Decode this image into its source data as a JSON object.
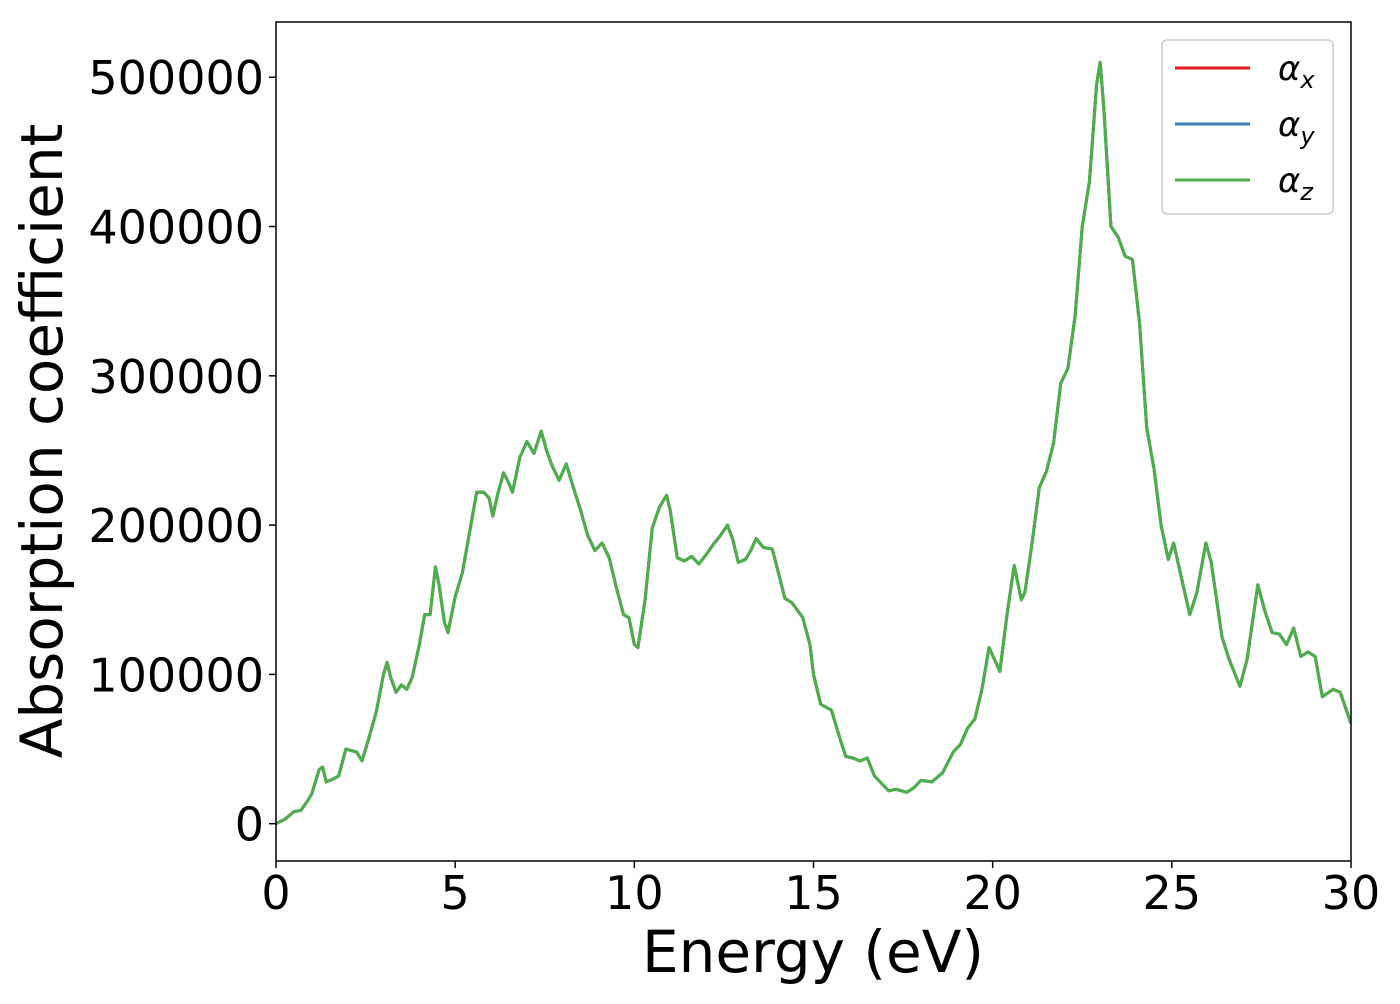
{
  "chart_data": {
    "type": "line",
    "xlabel": "Energy (eV)",
    "ylabel": "Absorption coefficient",
    "x": [
      0,
      0.25,
      0.5,
      0.7,
      0.9,
      1.0,
      1.2,
      1.3,
      1.4,
      1.6,
      1.75,
      1.95,
      2.1,
      2.25,
      2.4,
      2.6,
      2.8,
      3.0,
      3.1,
      3.2,
      3.35,
      3.5,
      3.65,
      3.8,
      4.0,
      4.15,
      4.3,
      4.45,
      4.55,
      4.7,
      4.8,
      5.0,
      5.2,
      5.4,
      5.6,
      5.8,
      5.95,
      6.05,
      6.2,
      6.35,
      6.5,
      6.6,
      6.8,
      7.0,
      7.2,
      7.4,
      7.55,
      7.7,
      7.9,
      8.1,
      8.3,
      8.5,
      8.7,
      8.9,
      9.1,
      9.3,
      9.5,
      9.7,
      9.85,
      10.0,
      10.1,
      10.3,
      10.5,
      10.7,
      10.9,
      11.0,
      11.2,
      11.4,
      11.6,
      11.8,
      12.0,
      12.2,
      12.4,
      12.6,
      12.75,
      12.9,
      13.1,
      13.25,
      13.4,
      13.6,
      13.85,
      14.0,
      14.2,
      14.4,
      14.7,
      14.9,
      15.0,
      15.2,
      15.5,
      15.7,
      15.9,
      16.1,
      16.3,
      16.5,
      16.7,
      16.9,
      17.1,
      17.3,
      17.6,
      17.8,
      18.0,
      18.3,
      18.6,
      18.9,
      19.1,
      19.3,
      19.5,
      19.7,
      19.9,
      20.2,
      20.4,
      20.6,
      20.8,
      20.9,
      21.1,
      21.3,
      21.5,
      21.7,
      21.9,
      22.1,
      22.3,
      22.5,
      22.7,
      22.9,
      23.0,
      23.1,
      23.3,
      23.5,
      23.7,
      23.9,
      24.1,
      24.3,
      24.5,
      24.7,
      24.9,
      25.05,
      25.2,
      25.5,
      25.7,
      25.95,
      26.1,
      26.4,
      26.6,
      26.9,
      27.1,
      27.4,
      27.6,
      27.8,
      28.0,
      28.2,
      28.4,
      28.6,
      28.8,
      29.0,
      29.2,
      29.5,
      29.7,
      30.0
    ],
    "series": [
      {
        "name": "αx",
        "color": "#e41a1c",
        "values": [
          0,
          3000,
          8000,
          9000,
          16000,
          20000,
          36000,
          38000,
          28000,
          30000,
          32000,
          50000,
          49000,
          48000,
          42000,
          58000,
          75000,
          100000,
          108000,
          98000,
          88000,
          93000,
          90000,
          98000,
          120000,
          140000,
          140000,
          172000,
          160000,
          135000,
          128000,
          152000,
          168000,
          195000,
          222000,
          222000,
          218000,
          206000,
          222000,
          235000,
          228000,
          222000,
          245000,
          256000,
          248000,
          263000,
          250000,
          240000,
          230000,
          241000,
          225000,
          210000,
          193000,
          183000,
          188000,
          178000,
          158000,
          140000,
          138000,
          120000,
          118000,
          150000,
          198000,
          212000,
          220000,
          210000,
          178000,
          176000,
          179000,
          174000,
          180000,
          187000,
          193000,
          200000,
          190000,
          175000,
          177000,
          183000,
          191000,
          185000,
          184000,
          170000,
          151000,
          148000,
          138000,
          120000,
          100000,
          80000,
          76000,
          60000,
          45000,
          44000,
          42000,
          44000,
          32000,
          27000,
          22000,
          23000,
          21000,
          24000,
          29000,
          28000,
          34000,
          48000,
          53000,
          64000,
          70000,
          90000,
          118000,
          102000,
          140000,
          173000,
          150000,
          155000,
          188000,
          225000,
          236000,
          255000,
          295000,
          305000,
          340000,
          400000,
          430000,
          495000,
          510000,
          480000,
          400000,
          393000,
          380000,
          378000,
          335000,
          265000,
          238000,
          200000,
          177000,
          188000,
          172000,
          140000,
          155000,
          188000,
          175000,
          125000,
          110000,
          92000,
          110000,
          160000,
          142000,
          128000,
          127000,
          120000,
          131000,
          112000,
          115000,
          112000,
          85000,
          90000,
          88000,
          67000
        ]
      },
      {
        "name": "αy",
        "color": "#377eb8",
        "values": [
          0,
          3000,
          8000,
          9000,
          16000,
          20000,
          36000,
          38000,
          28000,
          30000,
          32000,
          50000,
          49000,
          48000,
          42000,
          58000,
          75000,
          100000,
          108000,
          98000,
          88000,
          93000,
          90000,
          98000,
          120000,
          140000,
          140000,
          172000,
          160000,
          135000,
          128000,
          152000,
          168000,
          195000,
          222000,
          222000,
          218000,
          206000,
          222000,
          235000,
          228000,
          222000,
          245000,
          256000,
          248000,
          263000,
          250000,
          240000,
          230000,
          241000,
          225000,
          210000,
          193000,
          183000,
          188000,
          178000,
          158000,
          140000,
          138000,
          120000,
          118000,
          150000,
          198000,
          212000,
          220000,
          210000,
          178000,
          176000,
          179000,
          174000,
          180000,
          187000,
          193000,
          200000,
          190000,
          175000,
          177000,
          183000,
          191000,
          185000,
          184000,
          170000,
          151000,
          148000,
          138000,
          120000,
          100000,
          80000,
          76000,
          60000,
          45000,
          44000,
          42000,
          44000,
          32000,
          27000,
          22000,
          23000,
          21000,
          24000,
          29000,
          28000,
          34000,
          48000,
          53000,
          64000,
          70000,
          90000,
          118000,
          102000,
          140000,
          173000,
          150000,
          155000,
          188000,
          225000,
          236000,
          255000,
          295000,
          305000,
          340000,
          400000,
          430000,
          495000,
          510000,
          480000,
          400000,
          393000,
          380000,
          378000,
          335000,
          265000,
          238000,
          200000,
          177000,
          188000,
          172000,
          140000,
          155000,
          188000,
          175000,
          125000,
          110000,
          92000,
          110000,
          160000,
          142000,
          128000,
          127000,
          120000,
          131000,
          112000,
          115000,
          112000,
          85000,
          90000,
          88000,
          67000
        ]
      },
      {
        "name": "αz",
        "color": "#4daf4a",
        "values": [
          0,
          3000,
          8000,
          9000,
          16000,
          20000,
          36000,
          38000,
          28000,
          30000,
          32000,
          50000,
          49000,
          48000,
          42000,
          58000,
          75000,
          100000,
          108000,
          98000,
          88000,
          93000,
          90000,
          98000,
          120000,
          140000,
          140000,
          172000,
          160000,
          135000,
          128000,
          152000,
          168000,
          195000,
          222000,
          222000,
          218000,
          206000,
          222000,
          235000,
          228000,
          222000,
          245000,
          256000,
          248000,
          263000,
          250000,
          240000,
          230000,
          241000,
          225000,
          210000,
          193000,
          183000,
          188000,
          178000,
          158000,
          140000,
          138000,
          120000,
          118000,
          150000,
          198000,
          212000,
          220000,
          210000,
          178000,
          176000,
          179000,
          174000,
          180000,
          187000,
          193000,
          200000,
          190000,
          175000,
          177000,
          183000,
          191000,
          185000,
          184000,
          170000,
          151000,
          148000,
          138000,
          120000,
          100000,
          80000,
          76000,
          60000,
          45000,
          44000,
          42000,
          44000,
          32000,
          27000,
          22000,
          23000,
          21000,
          24000,
          29000,
          28000,
          34000,
          48000,
          53000,
          64000,
          70000,
          90000,
          118000,
          102000,
          140000,
          173000,
          150000,
          155000,
          188000,
          225000,
          236000,
          255000,
          295000,
          305000,
          340000,
          400000,
          430000,
          495000,
          510000,
          480000,
          400000,
          393000,
          380000,
          378000,
          335000,
          265000,
          238000,
          200000,
          177000,
          188000,
          172000,
          140000,
          155000,
          188000,
          175000,
          125000,
          110000,
          92000,
          110000,
          160000,
          142000,
          128000,
          127000,
          120000,
          131000,
          112000,
          115000,
          112000,
          85000,
          90000,
          88000,
          67000
        ]
      }
    ],
    "xlim": [
      0,
      30
    ],
    "xticks": [
      0,
      5,
      10,
      15,
      20,
      25,
      30
    ],
    "ylim": [
      -25000,
      537000
    ],
    "yticks": [
      0,
      100000,
      200000,
      300000,
      400000,
      500000
    ],
    "legend": "upper right",
    "grid": false
  }
}
